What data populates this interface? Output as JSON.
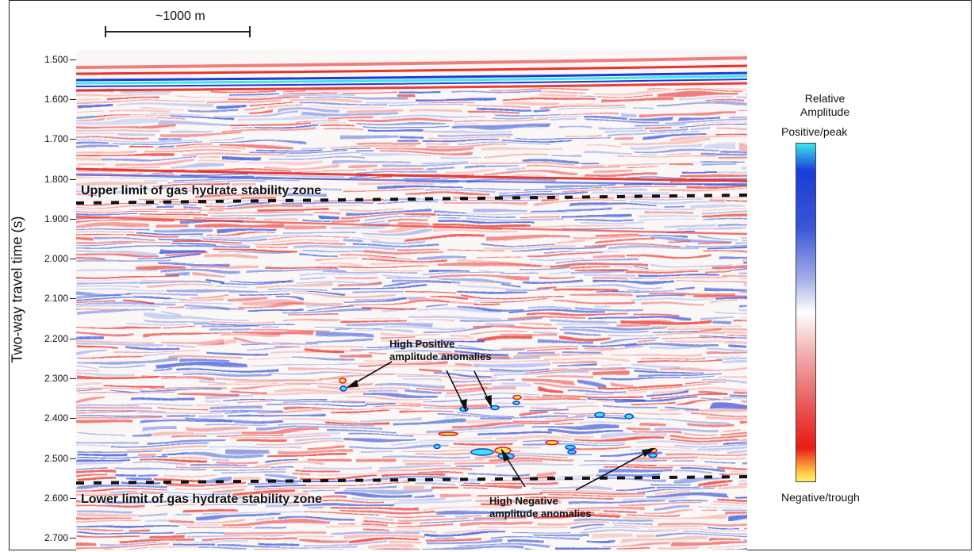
{
  "scale": {
    "label": "~1000 m"
  },
  "axis": {
    "ylabel": "Two-way travel time (s)",
    "ticks": [
      "1.500",
      "1.600",
      "1.700",
      "1.800",
      "1.900",
      "2.000",
      "2.100",
      "2.200",
      "2.300",
      "2.400",
      "2.500",
      "2.600",
      "2.700"
    ]
  },
  "zones": {
    "upper_label": "Upper limit of gas hydrate stability zone",
    "lower_label": "Lower limit of gas hydrate stability zone"
  },
  "annotations": {
    "positive": [
      "High Positive",
      "amplitude anomalies"
    ],
    "negative": [
      "High Negative",
      "amplitude anomalies"
    ]
  },
  "legend": {
    "title": [
      "Relative",
      "Amplitude"
    ],
    "top_label": "Positive/peak",
    "bottom_label": "Negative/trough"
  },
  "colors": {
    "positive": "#1a3cd8",
    "peak": "#3ee6ee",
    "negative": "#ea1a14",
    "trough": "#ffe25a"
  }
}
